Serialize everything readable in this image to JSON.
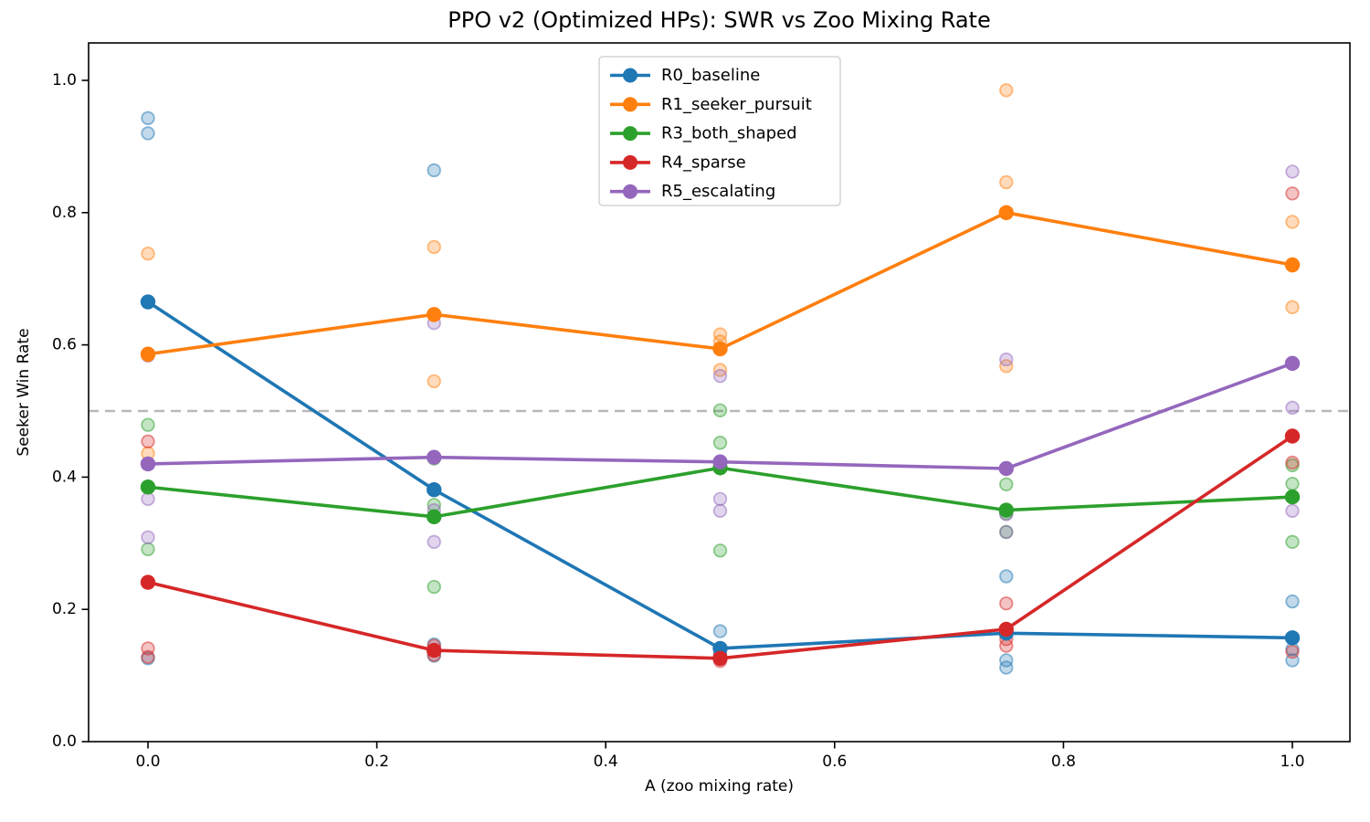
{
  "chart_data": {
    "type": "line",
    "title": "PPO v2 (Optimized HPs): SWR vs Zoo Mixing Rate",
    "xlabel": "A (zoo mixing rate)",
    "ylabel": "Seeker Win Rate",
    "x": [
      0.0,
      0.25,
      0.5,
      0.75,
      1.0
    ],
    "x_tick_labels": [
      "0.0",
      "0.2",
      "0.4",
      "0.6",
      "0.8",
      "1.0"
    ],
    "y_tick_labels": [
      "0.0",
      "0.2",
      "0.4",
      "0.6",
      "0.8",
      "1.0"
    ],
    "xlim": [
      -0.052,
      1.05
    ],
    "ylim": [
      0.0,
      1.057
    ],
    "grid": false,
    "legend_position": "upper center",
    "reference_line": {
      "y": 0.5,
      "style": "dashed",
      "color": "#b0b0b0"
    },
    "series": [
      {
        "name": "R0_baseline",
        "color": "#1f77b4",
        "mean_values": [
          0.665,
          0.381,
          0.141,
          0.164,
          0.157
        ],
        "scatter_values_per_x": [
          [
            0.943,
            0.92,
            0.126
          ],
          [
            0.864,
            0.147,
            0.13
          ],
          [
            0.167,
            0.132,
            0.125
          ],
          [
            0.25,
            0.123,
            0.112
          ],
          [
            0.212,
            0.14,
            0.123
          ]
        ]
      },
      {
        "name": "R1_seeker_pursuit",
        "color": "#ff7f0e",
        "mean_values": [
          0.586,
          0.646,
          0.594,
          0.8,
          0.721
        ],
        "scatter_values_per_x": [
          [
            0.738,
            0.584,
            0.436
          ],
          [
            0.748,
            0.645,
            0.545
          ],
          [
            0.616,
            0.605,
            0.562
          ],
          [
            0.985,
            0.846,
            0.568
          ],
          [
            0.786,
            0.72,
            0.657
          ]
        ]
      },
      {
        "name": "R3_both_shaped",
        "color": "#2ca02c",
        "mean_values": [
          0.385,
          0.34,
          0.414,
          0.35,
          0.37
        ],
        "scatter_values_per_x": [
          [
            0.479,
            0.385,
            0.291
          ],
          [
            0.428,
            0.358,
            0.234
          ],
          [
            0.501,
            0.452,
            0.289
          ],
          [
            0.389,
            0.345,
            0.317
          ],
          [
            0.418,
            0.39,
            0.302
          ]
        ]
      },
      {
        "name": "R4_sparse",
        "color": "#d62728",
        "mean_values": [
          0.241,
          0.138,
          0.126,
          0.17,
          0.462
        ],
        "scatter_values_per_x": [
          [
            0.454,
            0.141,
            0.128
          ],
          [
            0.145,
            0.138,
            0.131
          ],
          [
            0.13,
            0.126,
            0.122
          ],
          [
            0.209,
            0.155,
            0.145
          ],
          [
            0.829,
            0.422,
            0.136
          ]
        ]
      },
      {
        "name": "R5_escalating",
        "color": "#9467bd",
        "mean_values": [
          0.42,
          0.43,
          0.423,
          0.413,
          0.572
        ],
        "scatter_values_per_x": [
          [
            0.584,
            0.367,
            0.309
          ],
          [
            0.633,
            0.35,
            0.302
          ],
          [
            0.553,
            0.367,
            0.349
          ],
          [
            0.578,
            0.344,
            0.317
          ],
          [
            0.862,
            0.505,
            0.349
          ]
        ]
      }
    ]
  }
}
